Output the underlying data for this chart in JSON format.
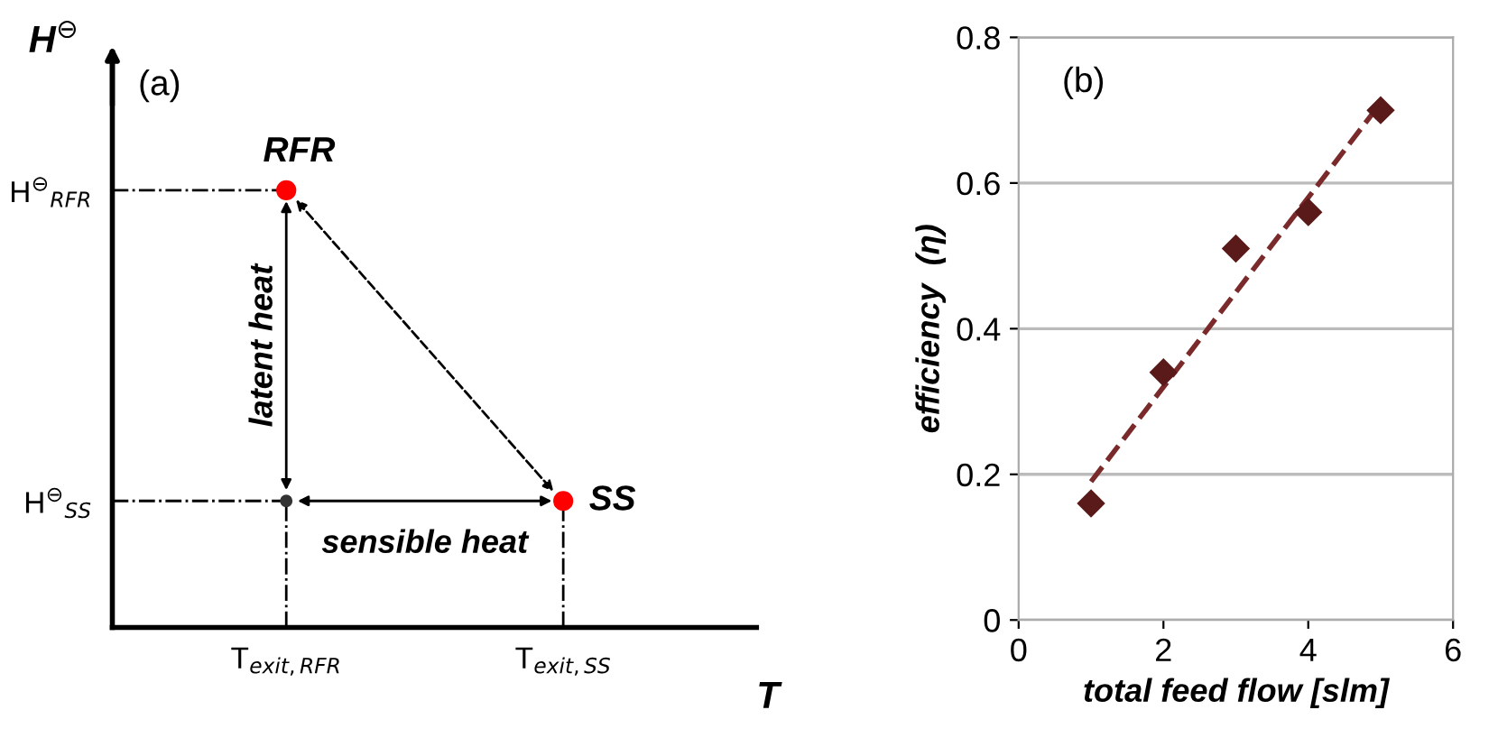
{
  "chart_data": [
    {
      "type": "other",
      "title": "(a)",
      "xlabel": "T",
      "ylabel": "H$^{⊖}$",
      "categories": [
        "T$_{exit,RFR}$",
        "T$_{exit,SS}$"
      ],
      "annotations": [
        "RFR",
        "SS",
        "latent heat",
        "sensible heat",
        "H$^{⊖}$$_{RFR}$",
        "H$^{⊖}$$_{SS}$"
      ]
    },
    {
      "type": "scatter",
      "title": "(b)",
      "xlabel": "total feed flow [slm]",
      "ylabel": "efficiency  (η)",
      "xlim": [
        0,
        6
      ],
      "xticks": [
        0,
        2,
        4,
        6
      ],
      "ylim": [
        0,
        0.8
      ],
      "yticks": [
        0,
        0.2,
        0.4,
        0.6,
        0.8
      ],
      "grid": "y",
      "marker": "diamond",
      "series": [
        {
          "type": "scatter",
          "color": "#5a1a1a",
          "x": [
            1,
            2,
            3,
            4,
            5
          ],
          "values": [
            0.16,
            0.34,
            0.51,
            0.56,
            0.7
          ]
        },
        {
          "type": "line",
          "color": "#7a2a2a",
          "line_style": "dashed",
          "marker": "none",
          "x": [
            1,
            5
          ],
          "values": [
            0.19,
            0.71
          ]
        }
      ]
    }
  ]
}
